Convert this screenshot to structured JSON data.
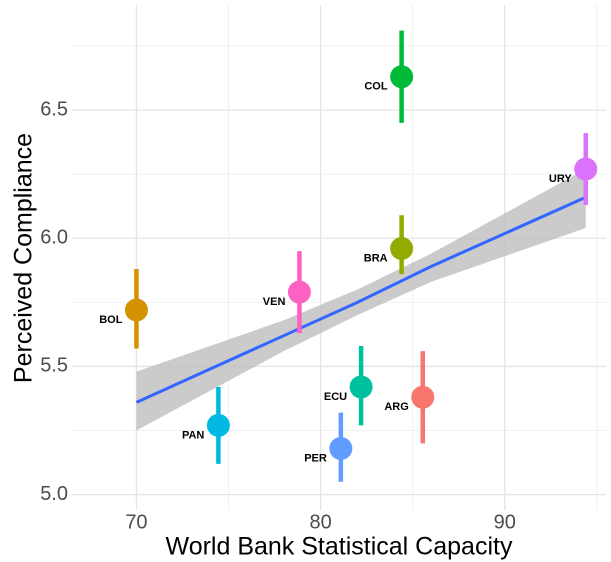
{
  "chart_data": {
    "type": "scatter",
    "x_label": "World Bank Statistical Capacity",
    "y_label": "Perceived Compliance",
    "xlim": [
      66.5,
      95.5
    ],
    "ylim": [
      4.94,
      6.91
    ],
    "xticks": [
      70,
      80,
      90
    ],
    "yticks": [
      {
        "value": 5.0,
        "label": "5.0"
      },
      5.5,
      {
        "value": 6.0,
        "label": "6.0"
      },
      6.5
    ],
    "xminor": [
      75,
      85,
      95
    ],
    "yminor": [
      5.25,
      5.75,
      6.25,
      6.75
    ],
    "grid": true,
    "series": [
      {
        "name": "ARG",
        "color": "#F8766D",
        "x": 85.55,
        "y": 5.38,
        "low": 5.2,
        "high": 5.56
      },
      {
        "name": "BOL",
        "color": "#D39200",
        "x": 70.0,
        "y": 5.72,
        "low": 5.57,
        "high": 5.88
      },
      {
        "name": "BRA",
        "color": "#93AA00",
        "x": 84.4,
        "y": 5.96,
        "low": 5.86,
        "high": 6.09
      },
      {
        "name": "COL",
        "color": "#00BA38",
        "x": 84.4,
        "y": 6.63,
        "low": 6.45,
        "high": 6.81
      },
      {
        "name": "ECU",
        "color": "#00C19F",
        "x": 82.2,
        "y": 5.42,
        "low": 5.27,
        "high": 5.58
      },
      {
        "name": "PAN",
        "color": "#00B9E3",
        "x": 74.45,
        "y": 5.27,
        "low": 5.12,
        "high": 5.42
      },
      {
        "name": "PER",
        "color": "#619CFF",
        "x": 81.1,
        "y": 5.18,
        "low": 5.05,
        "high": 5.32
      },
      {
        "name": "URY",
        "color": "#DB72FB",
        "x": 94.4,
        "y": 6.27,
        "low": 6.13,
        "high": 6.41
      },
      {
        "name": "VEN",
        "color": "#FF61C3",
        "x": 78.85,
        "y": 5.79,
        "low": 5.63,
        "high": 5.95
      }
    ],
    "fit": {
      "color": "#3366FF",
      "band_color": "#BEBEBE",
      "x": [
        70,
        78,
        82,
        86,
        94.4
      ],
      "y": [
        5.36,
        5.62,
        5.75,
        5.89,
        6.16
      ],
      "lower": [
        5.25,
        5.56,
        5.7,
        5.83,
        6.04
      ],
      "upper": [
        5.48,
        5.68,
        5.8,
        5.94,
        6.27
      ]
    }
  }
}
